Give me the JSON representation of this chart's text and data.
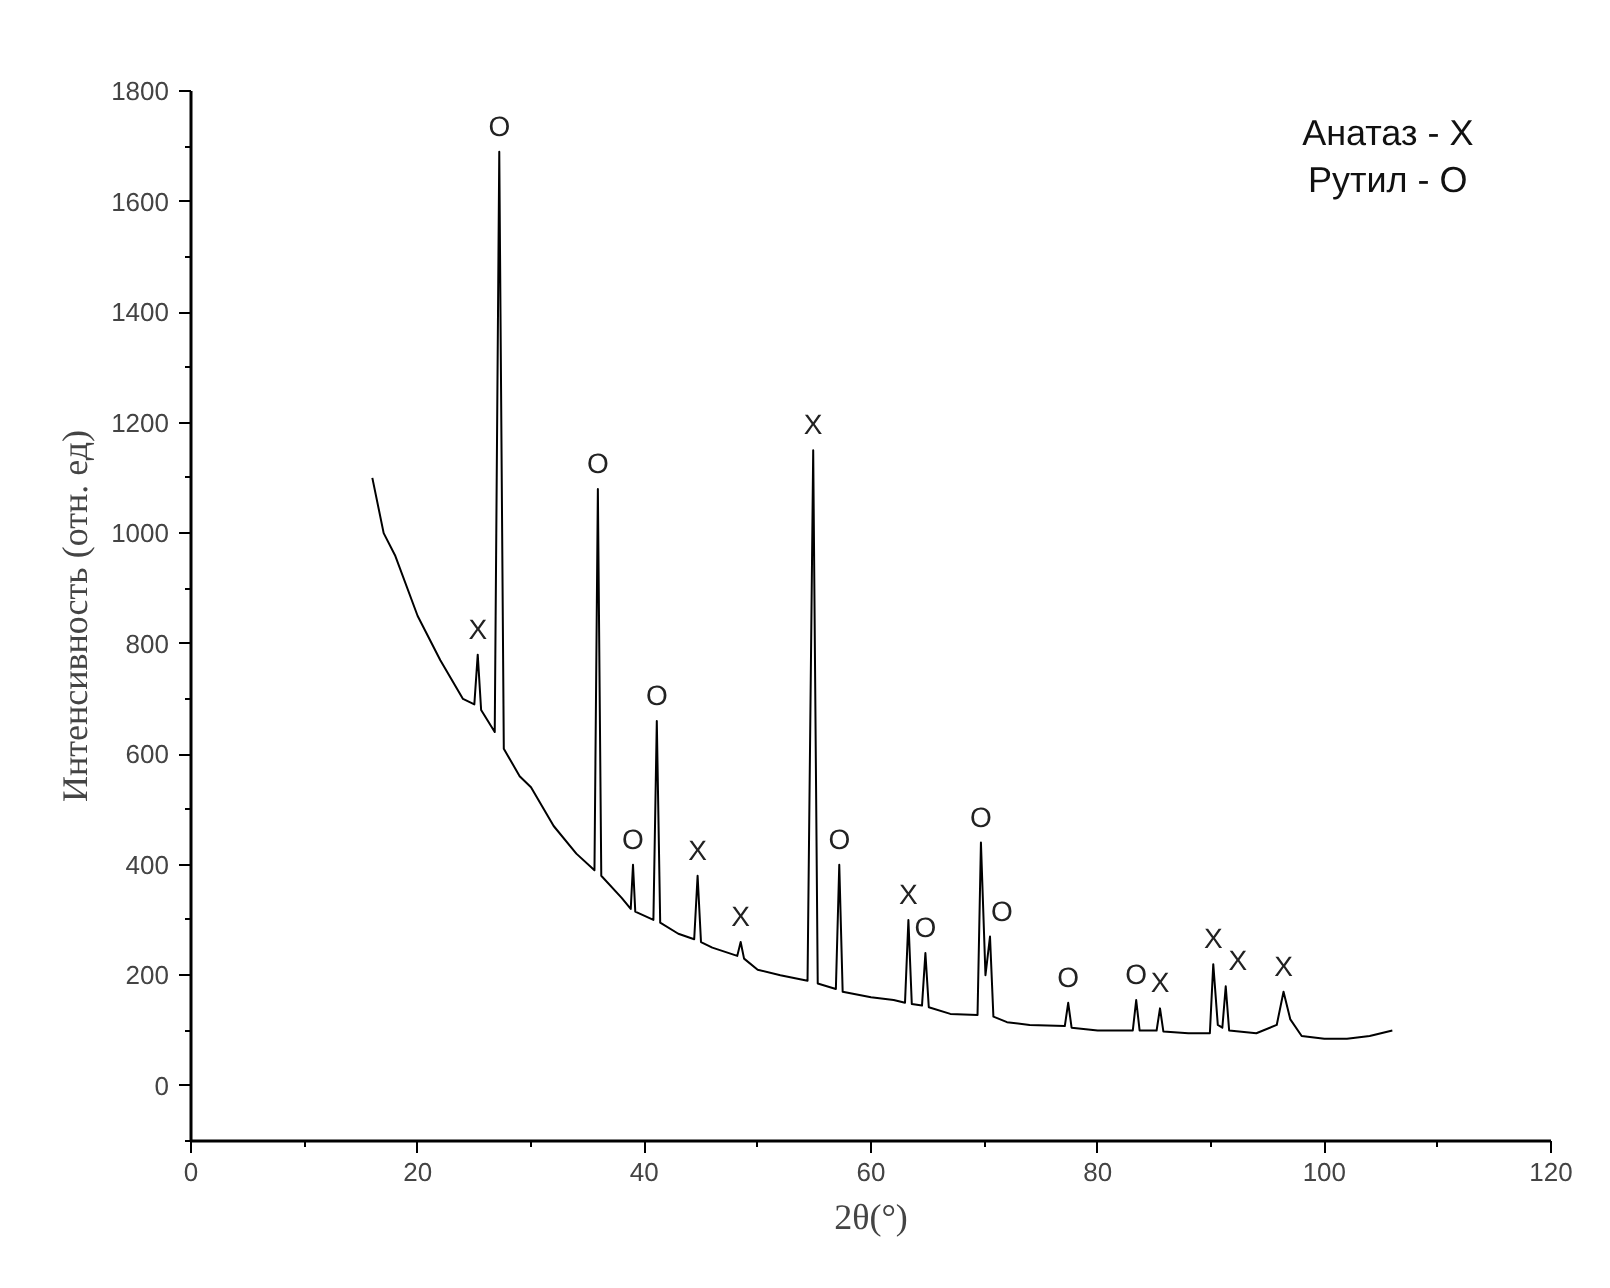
{
  "chart_data": {
    "type": "line",
    "xlabel": "2θ(°)",
    "ylabel": "Интенсивность (отн. ед)",
    "x": [
      16,
      17,
      18,
      20,
      22,
      24,
      25.0,
      25.3,
      25.6,
      26.8,
      27.2,
      27.6,
      29,
      30,
      32,
      34,
      35.6,
      35.9,
      36.2,
      38,
      38.8,
      39.0,
      39.2,
      40.8,
      41.1,
      41.4,
      43,
      44.4,
      44.7,
      45.0,
      46,
      48.2,
      48.5,
      48.8,
      50,
      52,
      54.4,
      54.9,
      55.3,
      56.9,
      57.2,
      57.5,
      60,
      62,
      63.0,
      63.3,
      63.6,
      64.5,
      64.8,
      65.1,
      67,
      69.4,
      69.7,
      70.1,
      70.5,
      70.8,
      72,
      74,
      77.1,
      77.4,
      77.7,
      80,
      83.1,
      83.4,
      83.7,
      85.2,
      85.5,
      85.8,
      88,
      89.9,
      90.2,
      90.6,
      91.0,
      91.3,
      91.6,
      94,
      95.8,
      96.4,
      97.0,
      98,
      100,
      102,
      104,
      106
    ],
    "series": [
      {
        "color": "#000000",
        "values": [
          1100,
          1000,
          960,
          850,
          770,
          700,
          690,
          780,
          680,
          640,
          1690,
          610,
          560,
          540,
          470,
          420,
          390,
          1080,
          380,
          340,
          320,
          400,
          315,
          300,
          660,
          295,
          275,
          265,
          380,
          260,
          250,
          235,
          260,
          230,
          210,
          200,
          190,
          1150,
          185,
          175,
          400,
          170,
          160,
          155,
          150,
          300,
          148,
          145,
          240,
          142,
          130,
          128,
          440,
          200,
          270,
          125,
          115,
          110,
          108,
          150,
          105,
          100,
          100,
          155,
          100,
          100,
          140,
          98,
          95,
          95,
          220,
          110,
          105,
          180,
          100,
          95,
          110,
          170,
          120,
          90,
          85,
          85,
          90,
          100
        ]
      }
    ],
    "xlim": [
      0,
      120
    ],
    "xticks": [
      0,
      20,
      40,
      60,
      80,
      100,
      120
    ],
    "ylim": [
      -100,
      1800
    ],
    "yticks": [
      0,
      200,
      400,
      600,
      800,
      1000,
      1200,
      1400,
      1600,
      1800
    ],
    "grid": false,
    "marker": "none",
    "line_style": "solid",
    "annotations": [
      "Анатаз - X",
      "Рутил - O",
      {
        "text": "X",
        "x": 25.3,
        "y": 780
      },
      {
        "text": "O",
        "x": 27.2,
        "y": 1690
      },
      {
        "text": "O",
        "x": 35.9,
        "y": 1080
      },
      {
        "text": "O",
        "x": 39.0,
        "y": 400
      },
      {
        "text": "O",
        "x": 41.1,
        "y": 660
      },
      {
        "text": "X",
        "x": 44.7,
        "y": 380
      },
      {
        "text": "X",
        "x": 48.5,
        "y": 260
      },
      {
        "text": "X",
        "x": 54.9,
        "y": 1150
      },
      {
        "text": "O",
        "x": 57.2,
        "y": 400
      },
      {
        "text": "X",
        "x": 63.3,
        "y": 300
      },
      {
        "text": "O",
        "x": 64.8,
        "y": 240
      },
      {
        "text": "O",
        "x": 69.7,
        "y": 440
      },
      {
        "text": "O",
        "x": 70.5,
        "y": 270
      },
      {
        "text": "O",
        "x": 77.4,
        "y": 150
      },
      {
        "text": "O",
        "x": 83.4,
        "y": 155
      },
      {
        "text": "X",
        "x": 85.5,
        "y": 140
      },
      {
        "text": "X",
        "x": 90.2,
        "y": 220
      },
      {
        "text": "X",
        "x": 91.3,
        "y": 180
      },
      {
        "text": "X",
        "x": 96.4,
        "y": 170
      }
    ]
  }
}
